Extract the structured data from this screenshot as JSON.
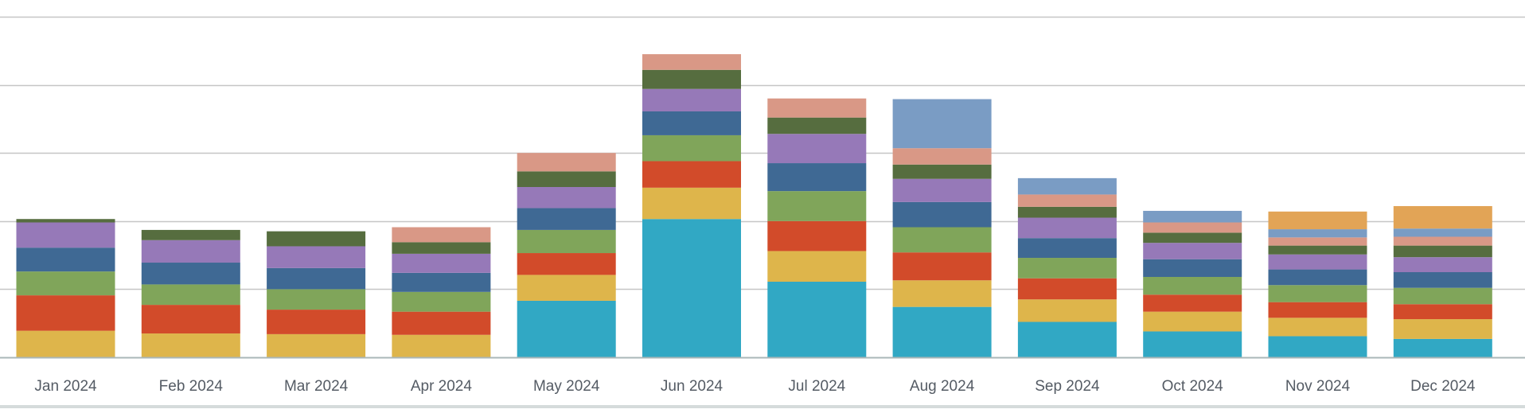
{
  "chart_data": {
    "type": "bar",
    "stacked": true,
    "title": "",
    "xlabel": "",
    "ylabel": "",
    "ylim": [
      0,
      5
    ],
    "grid": true,
    "legend": "none",
    "categories": [
      "Jan 2024",
      "Feb 2024",
      "Mar 2024",
      "Apr 2024",
      "May 2024",
      "Jun 2024",
      "Jul 2024",
      "Aug 2024",
      "Sep 2024",
      "Oct 2024",
      "Nov 2024",
      "Dec 2024"
    ],
    "series": [
      {
        "color": "#31a8c4",
        "values": [
          0,
          0,
          0,
          0,
          0.83,
          2.03,
          1.11,
          0.74,
          0.52,
          0.38,
          0.31,
          0.27
        ]
      },
      {
        "color": "#deb54b",
        "values": [
          0.39,
          0.35,
          0.34,
          0.33,
          0.38,
          0.46,
          0.45,
          0.39,
          0.33,
          0.29,
          0.27,
          0.29
        ]
      },
      {
        "color": "#d24b2a",
        "values": [
          0.52,
          0.42,
          0.36,
          0.34,
          0.32,
          0.39,
          0.44,
          0.41,
          0.31,
          0.25,
          0.23,
          0.22
        ]
      },
      {
        "color": "#80a55a",
        "values": [
          0.35,
          0.3,
          0.3,
          0.29,
          0.34,
          0.38,
          0.44,
          0.37,
          0.3,
          0.26,
          0.25,
          0.24
        ]
      },
      {
        "color": "#3f6994",
        "values": [
          0.35,
          0.32,
          0.31,
          0.28,
          0.32,
          0.35,
          0.41,
          0.37,
          0.29,
          0.26,
          0.23,
          0.23
        ]
      },
      {
        "color": "#9679b8",
        "values": [
          0.37,
          0.33,
          0.32,
          0.28,
          0.31,
          0.33,
          0.43,
          0.34,
          0.3,
          0.24,
          0.22,
          0.22
        ]
      },
      {
        "color": "#566d3f",
        "values": [
          0.05,
          0.15,
          0.22,
          0.17,
          0.23,
          0.28,
          0.24,
          0.21,
          0.16,
          0.15,
          0.13,
          0.17
        ]
      },
      {
        "color": "#d99886",
        "values": [
          0,
          0,
          0,
          0.22,
          0.27,
          0.23,
          0.28,
          0.24,
          0.18,
          0.15,
          0.12,
          0.13
        ]
      },
      {
        "color": "#7a9cc4",
        "values": [
          0,
          0,
          0,
          0,
          0,
          0,
          0,
          0.72,
          0.24,
          0.17,
          0.12,
          0.12
        ]
      },
      {
        "color": "#e2a456",
        "values": [
          0,
          0,
          0,
          0,
          0,
          0,
          0,
          0,
          0,
          0,
          0.26,
          0.33
        ]
      }
    ]
  }
}
